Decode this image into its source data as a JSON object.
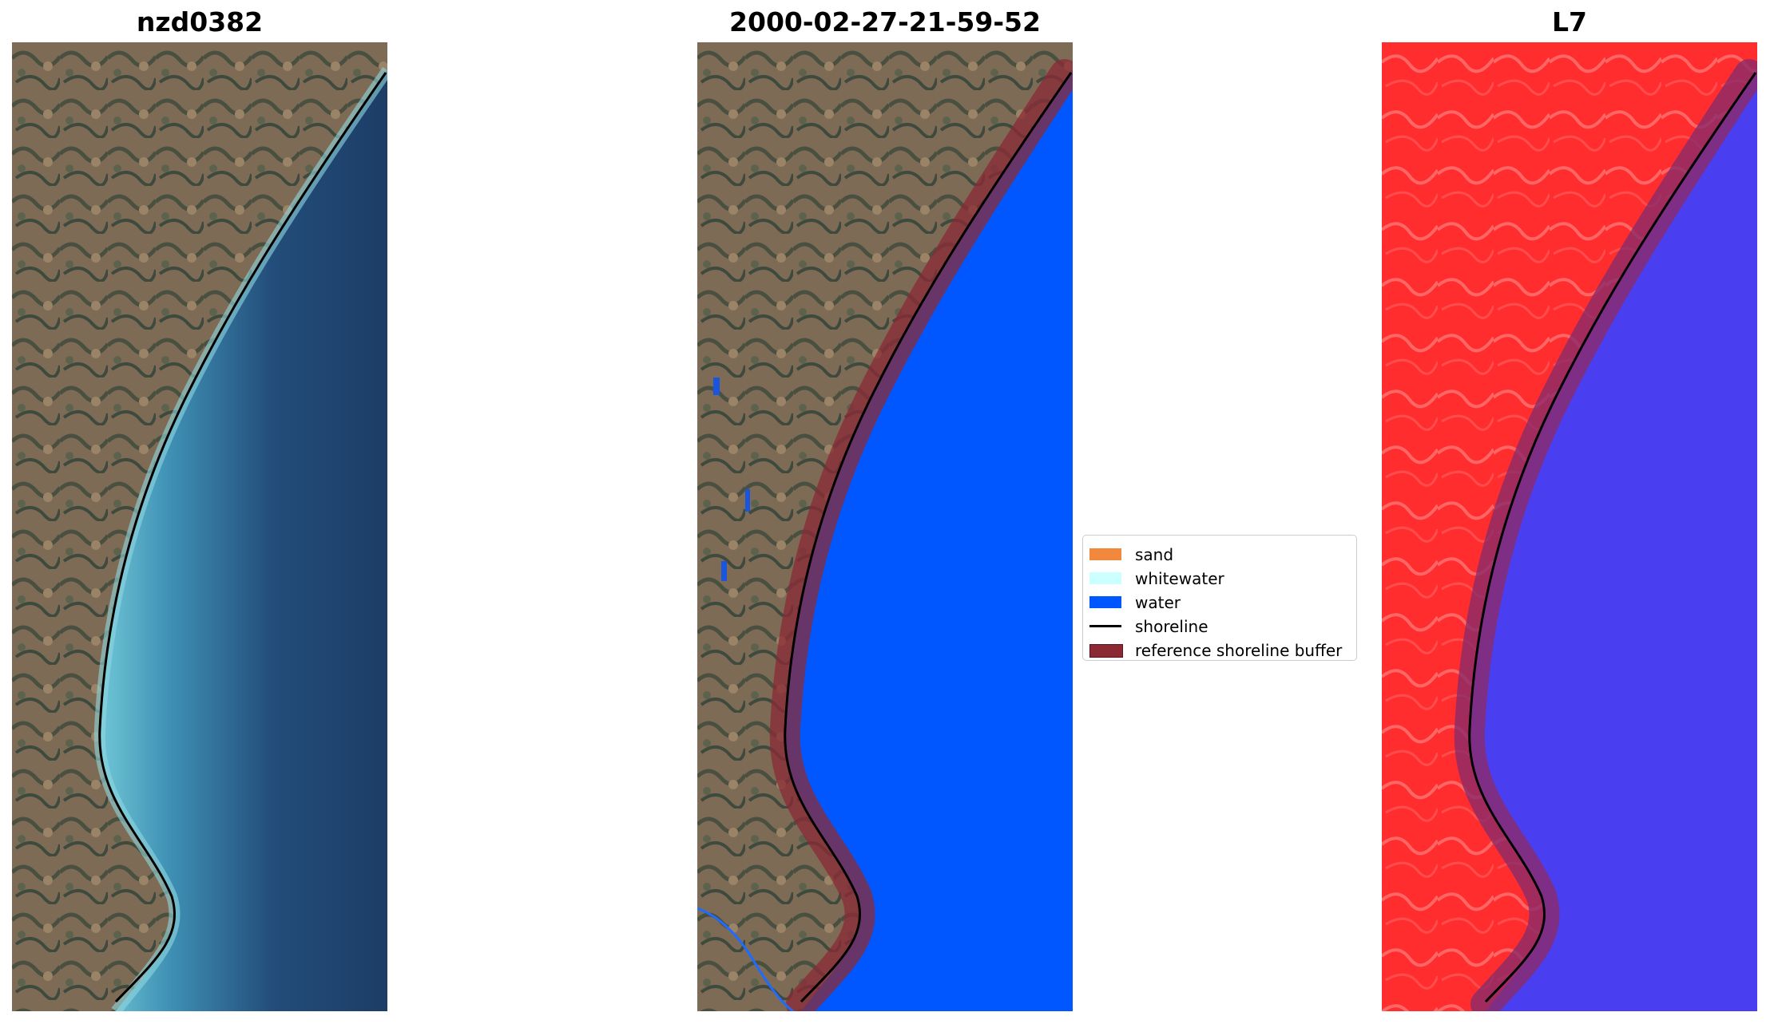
{
  "panels": [
    {
      "title": "nzd0382"
    },
    {
      "title": "2000-02-27-21-59-52"
    },
    {
      "title": "L7"
    }
  ],
  "legend": {
    "items": [
      {
        "label": "sand",
        "color": "#f2883c",
        "kind": "swatch"
      },
      {
        "label": "whitewater",
        "color": "#ccffff",
        "kind": "swatch"
      },
      {
        "label": "water",
        "color": "#0057ff",
        "kind": "swatch"
      },
      {
        "label": "shoreline",
        "color": "#000000",
        "kind": "line"
      },
      {
        "label": "reference shoreline buffer",
        "color": "#8b2a35",
        "kind": "swatch"
      }
    ]
  }
}
